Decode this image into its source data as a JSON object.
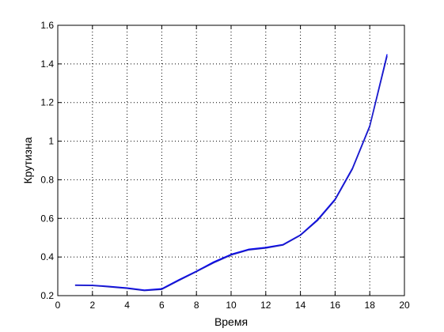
{
  "chart_data": {
    "type": "line",
    "xlabel": "Время",
    "ylabel": "Крутизна",
    "xlim": [
      0,
      20
    ],
    "ylim": [
      0.2,
      1.6
    ],
    "xticks": [
      0,
      2,
      4,
      6,
      8,
      10,
      12,
      14,
      16,
      18,
      20
    ],
    "xtick_labels": [
      "0",
      "2",
      "4",
      "6",
      "8",
      "10",
      "12",
      "14",
      "16",
      "18",
      "20"
    ],
    "yticks": [
      0.2,
      0.4,
      0.6,
      0.8,
      1.0,
      1.2,
      1.4,
      1.6
    ],
    "ytick_labels": [
      "0.2",
      "0.4",
      "0.6",
      "0.8",
      "1",
      "1.2",
      "1.4",
      "1.6"
    ],
    "grid": true,
    "grid_style": "dotted",
    "series": [
      {
        "color": "#0000ff",
        "x": [
          1,
          2,
          3,
          4,
          5,
          6,
          7,
          8,
          9,
          10,
          11,
          12,
          13,
          14,
          15,
          16,
          17,
          18,
          19
        ],
        "y": [
          0.255,
          0.254,
          0.248,
          0.24,
          0.229,
          0.236,
          0.283,
          0.327,
          0.375,
          0.414,
          0.44,
          0.45,
          0.465,
          0.515,
          0.595,
          0.7,
          0.86,
          1.08,
          1.45
        ]
      },
      {
        "color": "#1f1fbf",
        "x": [
          1,
          2,
          3,
          4,
          5,
          6,
          7,
          8,
          9,
          10,
          11,
          12,
          13,
          14,
          15,
          16,
          17,
          18,
          19
        ],
        "y": [
          0.253,
          0.252,
          0.245,
          0.237,
          0.226,
          0.232,
          0.279,
          0.324,
          0.37,
          0.41,
          0.436,
          0.446,
          0.462,
          0.512,
          0.59,
          0.695,
          0.855,
          1.075,
          1.44
        ]
      }
    ]
  }
}
